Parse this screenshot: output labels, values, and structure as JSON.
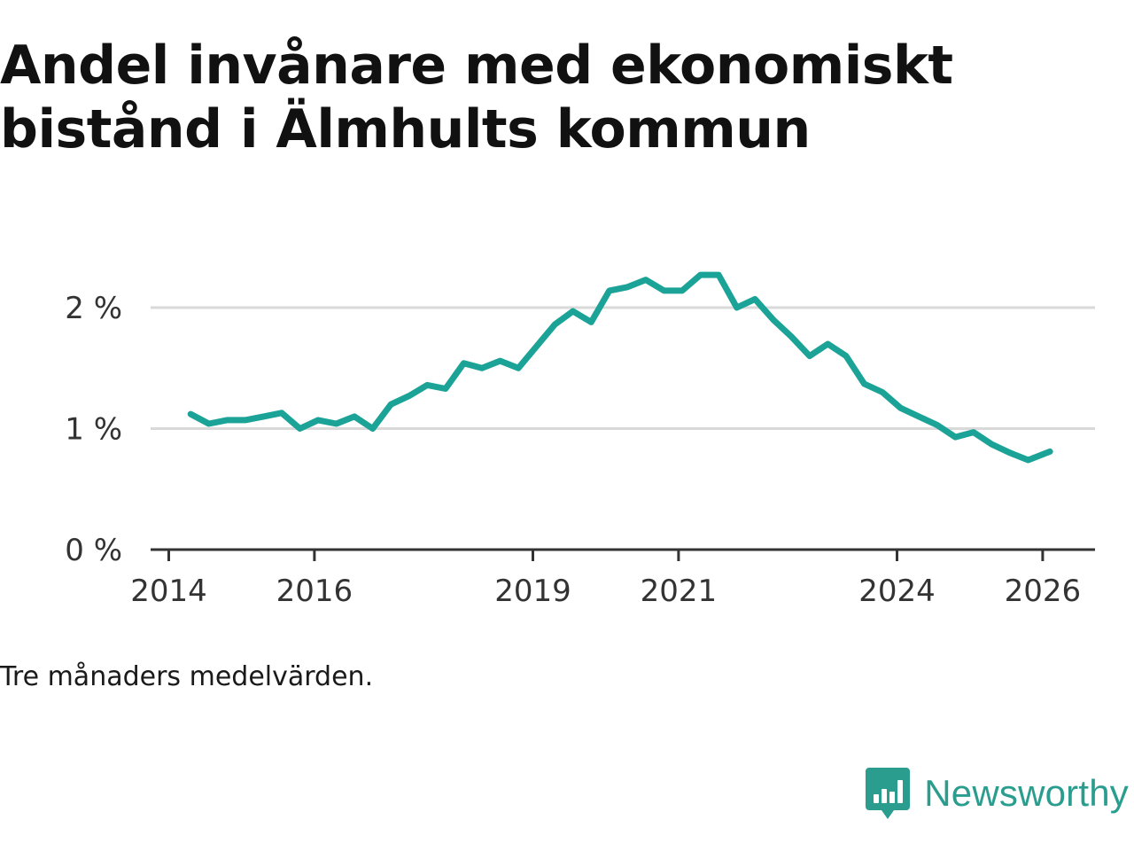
{
  "title": "Andel invånare med ekonomiskt bistånd i Älmhults kommun",
  "note": "Tre månaders medelvärden.",
  "brand": {
    "name": "Newsworthy",
    "logo_icon": "bar-chart-speech-bubble-icon"
  },
  "colors": {
    "line": "#1aa396",
    "grid": "#d9d9d9",
    "axis": "#333333",
    "brand": "#2a9d8f"
  },
  "chart_data": {
    "type": "line",
    "title": "Andel invånare med ekonomiskt bistånd i Älmhults kommun",
    "xlabel": "",
    "ylabel": "",
    "x_ticks": [
      2014,
      2016,
      2019,
      2021,
      2024,
      2026
    ],
    "x_tick_labels": [
      "2014",
      "2016",
      "2019",
      "2021",
      "2024",
      "2026"
    ],
    "y_ticks": [
      0,
      1,
      2
    ],
    "y_tick_labels": [
      "0 %",
      "1 %",
      "2 %"
    ],
    "xlim": [
      2013.97,
      2026.7
    ],
    "ylim": [
      0,
      2.3
    ],
    "grid": true,
    "series": [
      {
        "name": "Andel invånare med ekonomiskt bistånd",
        "x": [
          2014.3,
          2014.55,
          2014.8,
          2015.05,
          2015.3,
          2015.55,
          2015.8,
          2016.05,
          2016.3,
          2016.55,
          2016.8,
          2017.05,
          2017.3,
          2017.55,
          2017.8,
          2018.05,
          2018.3,
          2018.55,
          2018.8,
          2019.05,
          2019.3,
          2019.55,
          2019.8,
          2020.05,
          2020.3,
          2020.55,
          2020.8,
          2021.05,
          2021.3,
          2021.55,
          2021.8,
          2022.05,
          2022.3,
          2022.55,
          2022.8,
          2023.05,
          2023.3,
          2023.55,
          2023.8,
          2024.05,
          2024.3,
          2024.55,
          2024.8,
          2025.05,
          2025.3,
          2025.55,
          2025.8,
          2026.1
        ],
        "values": [
          1.12,
          1.04,
          1.07,
          1.07,
          1.1,
          1.13,
          1.0,
          1.07,
          1.04,
          1.1,
          1.0,
          1.2,
          1.27,
          1.36,
          1.33,
          1.54,
          1.5,
          1.56,
          1.5,
          1.68,
          1.86,
          1.97,
          1.88,
          2.14,
          2.17,
          2.23,
          2.14,
          2.14,
          2.27,
          2.27,
          2.0,
          2.07,
          1.9,
          1.76,
          1.6,
          1.7,
          1.6,
          1.37,
          1.3,
          1.17,
          1.1,
          1.03,
          0.93,
          0.97,
          0.87,
          0.8,
          0.74,
          0.81
        ]
      }
    ]
  }
}
